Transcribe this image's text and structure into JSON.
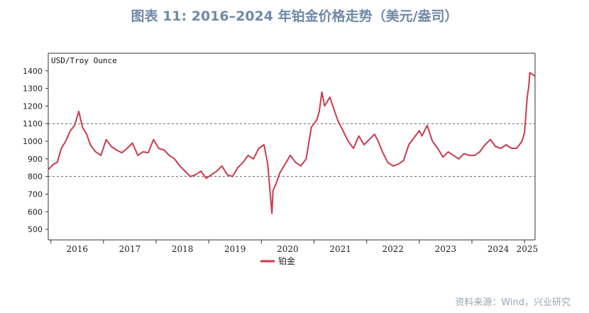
{
  "title": "图表 11: 2016–2024 年铂金价格走势（美元/盎司）",
  "source": "资料来源：Wind，兴业研究",
  "colors": {
    "series": "#cc3a4e",
    "title": "#6f8aa6",
    "refline": "#666666"
  },
  "chart_data": {
    "type": "line",
    "ylabel": "USD/Troy Ounce",
    "ylim": [
      440,
      1500
    ],
    "yticks": [
      500,
      600,
      700,
      800,
      900,
      1000,
      1100,
      1200,
      1300,
      1400
    ],
    "xlim": [
      2015.95,
      2025.2
    ],
    "xticks": [
      "2016",
      "2017",
      "2018",
      "2019",
      "2020",
      "2021",
      "2022",
      "2023",
      "2024",
      "2025"
    ],
    "reference_lines": [
      1100,
      800
    ],
    "grid": false,
    "legend": "bottom",
    "series": [
      {
        "name": "铂金",
        "x": [
          2015.95,
          2016.05,
          2016.12,
          2016.2,
          2016.28,
          2016.37,
          2016.45,
          2016.53,
          2016.6,
          2016.68,
          2016.75,
          2016.85,
          2016.95,
          2017.05,
          2017.15,
          2017.25,
          2017.35,
          2017.45,
          2017.55,
          2017.65,
          2017.75,
          2017.85,
          2017.95,
          2018.05,
          2018.15,
          2018.25,
          2018.35,
          2018.45,
          2018.55,
          2018.65,
          2018.75,
          2018.85,
          2018.95,
          2019.05,
          2019.15,
          2019.25,
          2019.35,
          2019.45,
          2019.55,
          2019.65,
          2019.75,
          2019.85,
          2019.95,
          2020.05,
          2020.12,
          2020.18,
          2020.2,
          2020.22,
          2020.28,
          2020.35,
          2020.45,
          2020.55,
          2020.65,
          2020.75,
          2020.85,
          2020.95,
          2021.05,
          2021.1,
          2021.15,
          2021.2,
          2021.3,
          2021.38,
          2021.45,
          2021.55,
          2021.65,
          2021.75,
          2021.85,
          2021.95,
          2022.05,
          2022.15,
          2022.22,
          2022.3,
          2022.4,
          2022.5,
          2022.6,
          2022.7,
          2022.8,
          2022.9,
          2023.0,
          2023.05,
          2023.15,
          2023.25,
          2023.35,
          2023.45,
          2023.55,
          2023.65,
          2023.75,
          2023.85,
          2023.95,
          2024.05,
          2024.15,
          2024.25,
          2024.35,
          2024.45,
          2024.55,
          2024.65,
          2024.75,
          2024.85,
          2024.95,
          2025.0,
          2025.05,
          2025.08,
          2025.1,
          2025.15,
          2025.2
        ],
        "values": [
          840,
          870,
          880,
          960,
          1000,
          1060,
          1090,
          1170,
          1080,
          1040,
          980,
          940,
          920,
          1010,
          970,
          950,
          935,
          960,
          990,
          920,
          940,
          935,
          1010,
          960,
          950,
          920,
          900,
          860,
          830,
          800,
          810,
          830,
          790,
          810,
          830,
          860,
          810,
          800,
          850,
          880,
          920,
          900,
          960,
          980,
          870,
          660,
          590,
          720,
          760,
          820,
          870,
          920,
          880,
          860,
          900,
          1080,
          1120,
          1170,
          1280,
          1200,
          1250,
          1180,
          1120,
          1060,
          1000,
          960,
          1030,
          980,
          1010,
          1040,
          1000,
          940,
          880,
          860,
          870,
          890,
          980,
          1020,
          1060,
          1030,
          1090,
          1000,
          960,
          910,
          940,
          920,
          900,
          930,
          920,
          920,
          940,
          980,
          1010,
          970,
          960,
          980,
          960,
          960,
          1000,
          1050,
          1250,
          1310,
          1390,
          1380,
          1370
        ]
      }
    ]
  }
}
